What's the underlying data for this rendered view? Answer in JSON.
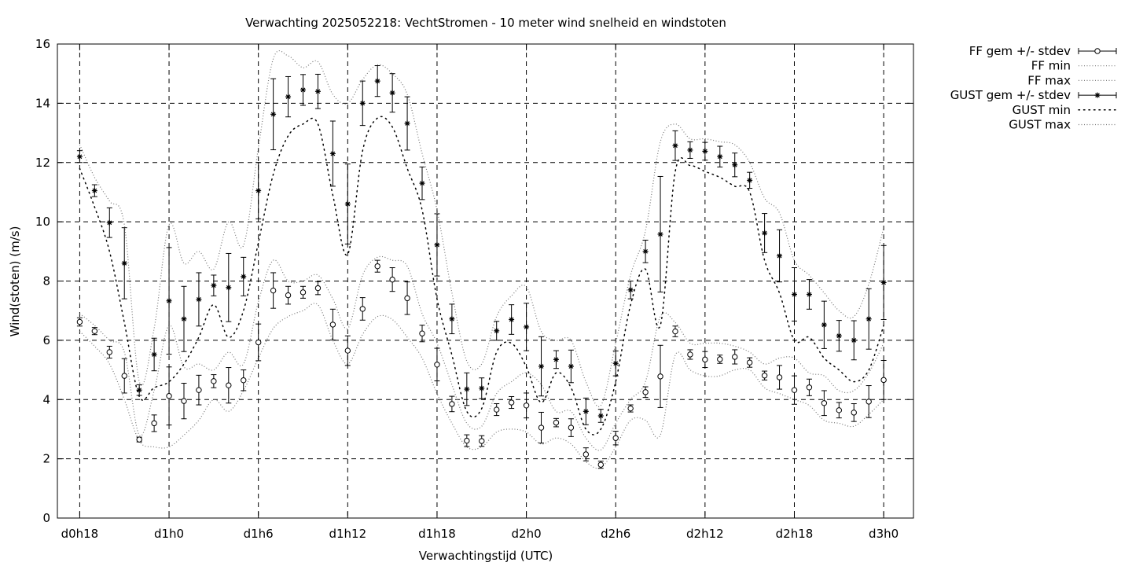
{
  "chart_data": {
    "type": "line",
    "title": "Verwachting 2025052218: VechtStromen - 10 meter wind snelheid en windstoten",
    "xlabel": "Verwachtingstijd (UTC)",
    "ylabel": "Wind(stoten) (m/s)",
    "x_unit": "hours since d0h18",
    "xlim": [
      -1.5,
      56
    ],
    "ylim": [
      0,
      16
    ],
    "yticks": [
      0,
      2,
      4,
      6,
      8,
      10,
      12,
      14,
      16
    ],
    "xticks": [
      {
        "x": 0,
        "label": "d0h18"
      },
      {
        "x": 6,
        "label": "d1h0"
      },
      {
        "x": 12,
        "label": "d1h6"
      },
      {
        "x": 18,
        "label": "d1h12"
      },
      {
        "x": 24,
        "label": "d1h18"
      },
      {
        "x": 30,
        "label": "d2h0"
      },
      {
        "x": 36,
        "label": "d2h6"
      },
      {
        "x": 42,
        "label": "d2h12"
      },
      {
        "x": 48,
        "label": "d2h18"
      },
      {
        "x": 54,
        "label": "d3h0"
      }
    ],
    "grid": true,
    "legend_position": "outside-top-right",
    "legend": [
      {
        "name": "FF gem +/- stdev",
        "style": "errorbar-circle"
      },
      {
        "name": "FF min",
        "style": "dotted"
      },
      {
        "name": "FF max",
        "style": "dotted"
      },
      {
        "name": "GUST gem +/- stdev",
        "style": "errorbar-star"
      },
      {
        "name": "GUST min",
        "style": "dotted-coarse"
      },
      {
        "name": "GUST max",
        "style": "dotted"
      }
    ],
    "x": [
      0,
      1,
      2,
      3,
      4,
      5,
      6,
      7,
      8,
      9,
      10,
      11,
      12,
      13,
      14,
      15,
      16,
      17,
      18,
      19,
      20,
      21,
      22,
      23,
      24,
      25,
      26,
      27,
      28,
      29,
      30,
      31,
      32,
      33,
      34,
      35,
      36,
      37,
      38,
      39,
      40,
      41,
      42,
      43,
      44,
      45,
      46,
      47,
      48,
      49,
      50,
      51,
      52,
      53,
      54
    ],
    "series": [
      {
        "name": "FF gem +/- stdev",
        "mean": [
          6.62,
          6.31,
          5.6,
          4.8,
          2.65,
          3.2,
          4.12,
          3.95,
          4.32,
          4.62,
          4.48,
          4.65,
          5.93,
          7.68,
          7.52,
          7.62,
          7.76,
          6.53,
          5.65,
          7.06,
          8.5,
          8.05,
          7.42,
          6.23,
          5.18,
          3.85,
          2.61,
          2.6,
          3.66,
          3.9,
          3.8,
          3.05,
          3.22,
          3.05,
          2.15,
          1.8,
          2.7,
          3.7,
          4.25,
          4.78,
          6.3,
          5.52,
          5.35,
          5.36,
          5.44,
          5.25,
          4.81,
          4.75,
          4.32,
          4.41,
          3.88,
          3.64,
          3.56,
          3.93,
          4.66
        ],
        "stdev": [
          0.14,
          0.12,
          0.2,
          0.58,
          0.08,
          0.28,
          0.98,
          0.6,
          0.5,
          0.22,
          0.6,
          0.35,
          0.62,
          0.6,
          0.3,
          0.2,
          0.22,
          0.52,
          0.5,
          0.38,
          0.2,
          0.4,
          0.55,
          0.28,
          0.55,
          0.26,
          0.2,
          0.18,
          0.2,
          0.2,
          0.42,
          0.52,
          0.14,
          0.3,
          0.22,
          0.12,
          0.23,
          0.12,
          0.18,
          1.05,
          0.18,
          0.16,
          0.27,
          0.14,
          0.24,
          0.16,
          0.15,
          0.4,
          0.48,
          0.28,
          0.42,
          0.26,
          0.3,
          0.54,
          0.66
        ]
      },
      {
        "name": "GUST gem +/- stdev",
        "mean": [
          12.2,
          11.05,
          9.97,
          8.6,
          4.32,
          5.52,
          7.33,
          6.72,
          7.38,
          7.85,
          7.78,
          8.15,
          11.05,
          13.63,
          14.22,
          14.45,
          14.4,
          12.3,
          10.6,
          14.0,
          14.75,
          14.35,
          13.32,
          11.3,
          9.22,
          6.72,
          4.35,
          4.38,
          6.32,
          6.7,
          6.45,
          5.12,
          5.35,
          5.12,
          3.6,
          3.45,
          5.22,
          7.7,
          9.0,
          9.58,
          12.57,
          12.42,
          12.38,
          12.2,
          11.92,
          11.4,
          9.62,
          8.85,
          7.55,
          7.55,
          6.52,
          6.15,
          6.0,
          6.72,
          7.95
        ],
        "stdev": [
          0.2,
          0.2,
          0.5,
          1.2,
          0.18,
          0.55,
          1.8,
          1.1,
          0.9,
          0.35,
          1.15,
          0.65,
          0.95,
          1.2,
          0.68,
          0.52,
          0.58,
          1.1,
          1.35,
          0.75,
          0.52,
          0.65,
          0.9,
          0.55,
          1.05,
          0.5,
          0.55,
          0.35,
          0.32,
          0.5,
          0.8,
          1.0,
          0.3,
          0.55,
          0.45,
          0.22,
          0.42,
          0.3,
          0.38,
          1.95,
          0.5,
          0.28,
          0.3,
          0.35,
          0.4,
          0.27,
          0.66,
          0.88,
          0.9,
          0.5,
          0.8,
          0.52,
          0.66,
          1.02,
          1.25
        ]
      },
      {
        "name": "FF min",
        "values": [
          6.3,
          5.8,
          5.2,
          4.0,
          2.6,
          2.4,
          2.4,
          2.8,
          3.3,
          4.0,
          3.6,
          4.3,
          5.4,
          6.4,
          6.8,
          7.0,
          7.2,
          6.0,
          5.2,
          6.2,
          6.8,
          6.7,
          6.1,
          5.4,
          4.2,
          3.2,
          2.4,
          2.4,
          2.9,
          3.0,
          2.9,
          2.5,
          2.7,
          2.5,
          1.9,
          1.7,
          2.4,
          3.3,
          3.3,
          2.8,
          5.5,
          5.0,
          4.8,
          4.8,
          5.0,
          5.0,
          4.4,
          4.2,
          4.0,
          3.8,
          3.3,
          3.2,
          3.1,
          3.5,
          4.0
        ]
      },
      {
        "name": "FF max",
        "values": [
          6.9,
          6.5,
          6.0,
          5.6,
          2.8,
          4.3,
          6.5,
          5.1,
          5.2,
          5.0,
          5.6,
          5.2,
          7.3,
          8.7,
          8.0,
          8.0,
          8.2,
          7.4,
          6.4,
          8.2,
          8.8,
          8.7,
          8.5,
          6.9,
          5.9,
          4.5,
          3.2,
          3.1,
          4.2,
          4.6,
          4.9,
          4.5,
          3.6,
          3.6,
          2.7,
          2.3,
          3.2,
          4.0,
          4.6,
          6.8,
          6.6,
          5.9,
          5.9,
          5.9,
          5.8,
          5.6,
          5.2,
          5.4,
          5.4,
          4.9,
          4.8,
          4.3,
          4.3,
          4.9,
          5.9
        ]
      },
      {
        "name": "GUST min",
        "values": [
          11.8,
          10.5,
          9.0,
          6.6,
          4.1,
          4.4,
          4.6,
          5.2,
          6.1,
          7.2,
          6.1,
          7.0,
          9.3,
          11.6,
          12.9,
          13.3,
          13.3,
          10.9,
          8.9,
          12.4,
          13.5,
          13.2,
          11.8,
          10.4,
          7.4,
          5.5,
          3.6,
          3.7,
          5.6,
          5.9,
          5.1,
          3.9,
          4.9,
          4.4,
          3.0,
          3.0,
          4.6,
          7.2,
          8.4,
          6.5,
          11.7,
          11.9,
          11.7,
          11.5,
          11.2,
          11.0,
          8.7,
          7.6,
          6.0,
          6.1,
          5.4,
          5.0,
          4.6,
          5.0,
          6.5
        ]
      },
      {
        "name": "GUST max",
        "values": [
          12.6,
          11.5,
          10.7,
          9.9,
          4.6,
          6.4,
          9.9,
          8.6,
          9.0,
          8.4,
          10.0,
          9.2,
          12.5,
          15.5,
          15.6,
          15.2,
          15.4,
          14.3,
          14.0,
          14.8,
          15.3,
          15.0,
          14.3,
          12.3,
          10.4,
          7.6,
          5.3,
          5.2,
          6.8,
          7.5,
          7.8,
          6.3,
          6.0,
          6.0,
          4.6,
          3.8,
          5.9,
          8.2,
          9.7,
          12.7,
          13.3,
          12.8,
          12.8,
          12.7,
          12.6,
          12.0,
          10.8,
          10.3,
          8.7,
          8.2,
          7.6,
          7.0,
          6.8,
          7.9,
          9.8
        ]
      }
    ]
  }
}
